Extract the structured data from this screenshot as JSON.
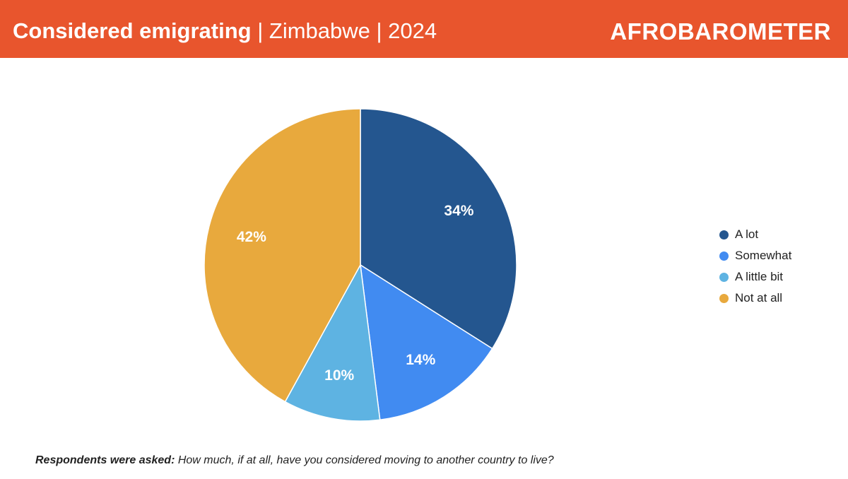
{
  "header": {
    "title_main": "Considered emigrating",
    "title_sub": " | Zimbabwe | 2024",
    "brand": "AFROBAROMETER",
    "background": "#E8552D"
  },
  "chart_data": {
    "type": "pie",
    "title": "Considered emigrating | Zimbabwe | 2024",
    "legend_position": "right",
    "slices": [
      {
        "label": "A lot",
        "value": 34,
        "display": "34%",
        "color": "#24568F"
      },
      {
        "label": "Somewhat",
        "value": 14,
        "display": "14%",
        "color": "#418BF1"
      },
      {
        "label": "A little bit",
        "value": 10,
        "display": "10%",
        "color": "#5EB3E2"
      },
      {
        "label": "Not at all",
        "value": 42,
        "display": "42%",
        "color": "#E8A93D"
      }
    ]
  },
  "footnote": {
    "lead": "Respondents were asked:",
    "question": " How much, if at all, have you considered moving to another country to live?"
  }
}
